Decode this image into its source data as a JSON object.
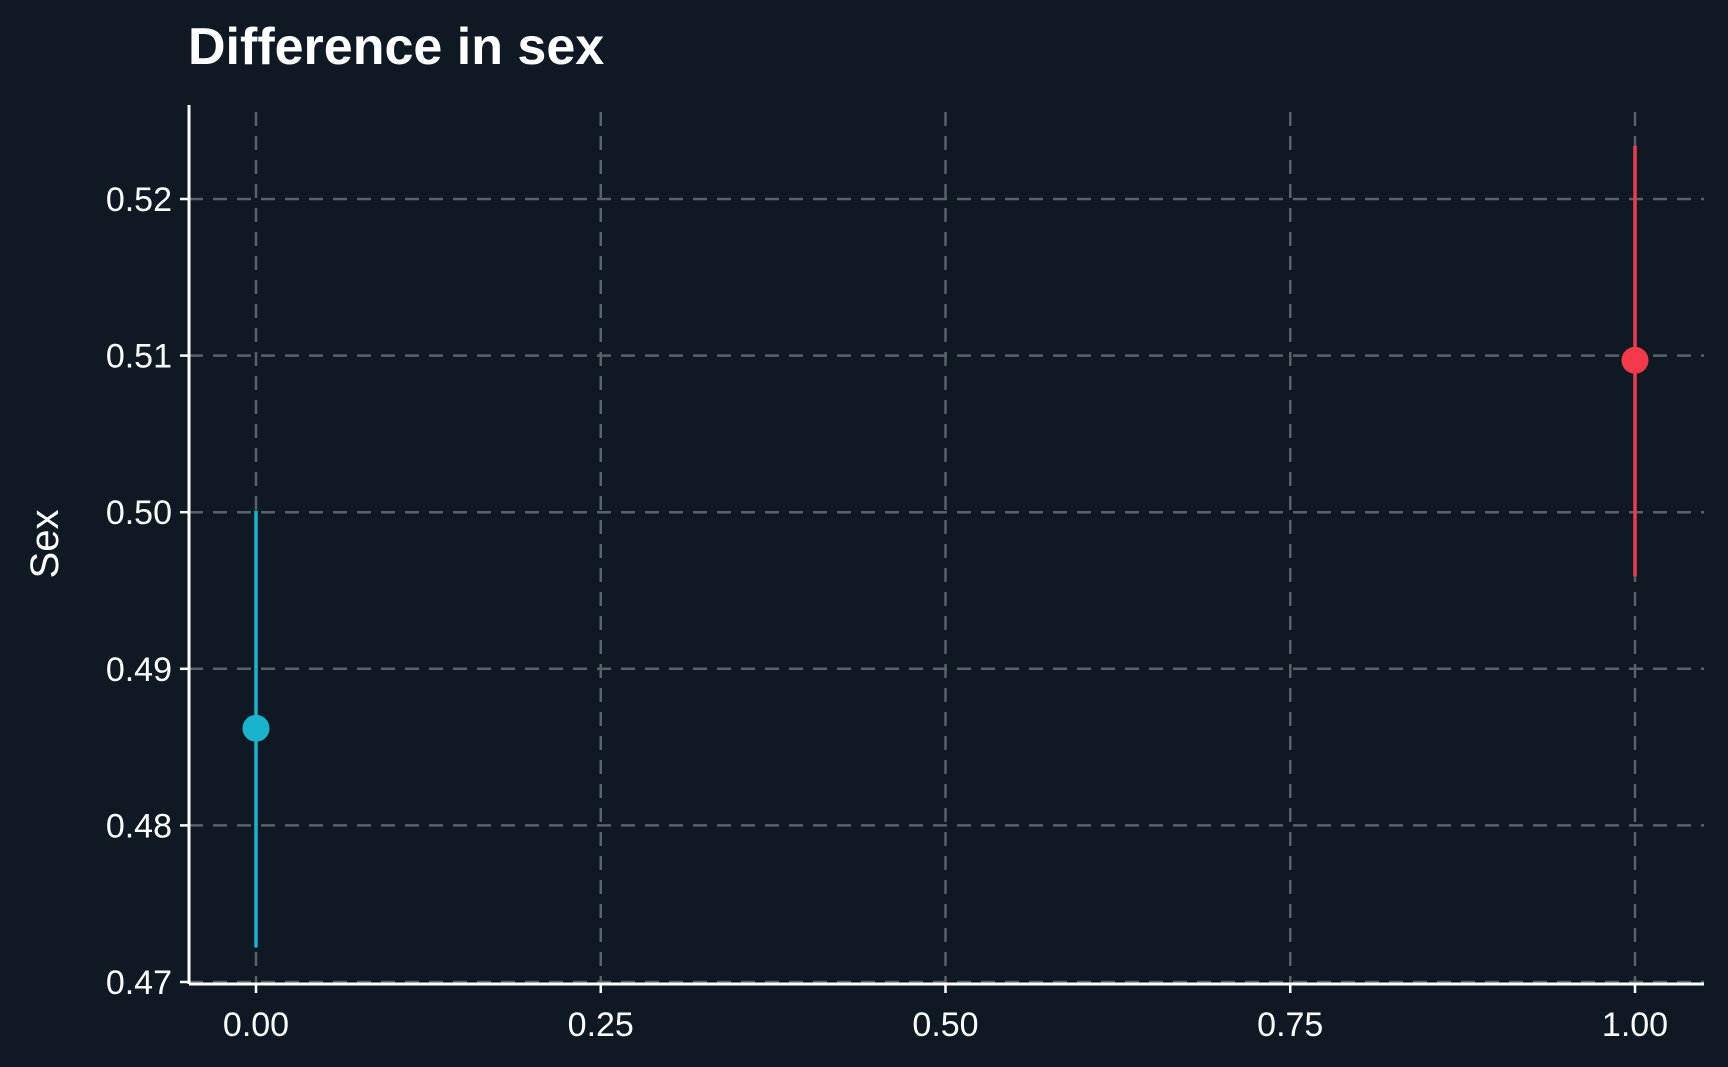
{
  "chart_data": {
    "type": "scatter",
    "title": "Difference in sex",
    "xlabel": "",
    "ylabel": "Sex",
    "xlim": [
      -0.05,
      1.05
    ],
    "ylim": [
      0.47,
      0.526
    ],
    "x_ticks": [
      0.0,
      0.25,
      0.5,
      0.75,
      1.0
    ],
    "x_tick_labels": [
      "0.00",
      "0.25",
      "0.50",
      "0.75",
      "1.00"
    ],
    "y_ticks": [
      0.47,
      0.48,
      0.49,
      0.5,
      0.51,
      0.52
    ],
    "y_tick_labels": [
      "0.47",
      "0.48",
      "0.49",
      "0.50",
      "0.51",
      "0.52"
    ],
    "grid": true,
    "legend": "none",
    "series": [
      {
        "x": 0.0,
        "y": 0.4862,
        "ymin": 0.4722,
        "ymax": 0.5001,
        "color": "#1ab3cc"
      },
      {
        "x": 1.0,
        "y": 0.5097,
        "ymin": 0.4959,
        "ymax": 0.5234,
        "color": "#f23a4a"
      }
    ]
  }
}
